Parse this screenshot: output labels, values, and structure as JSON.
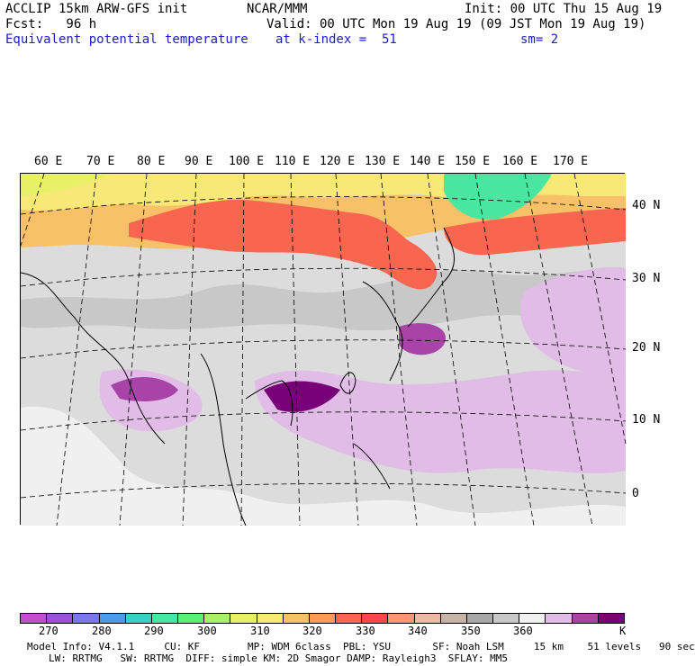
{
  "header": {
    "model": "ACCLIP 15km ARW-GFS init",
    "center": "NCAR/MMM",
    "init": "Init: 00 UTC Thu 15 Aug 19",
    "fcst": "Fcst:   96 h",
    "valid": "Valid: 00 UTC Mon 19 Aug 19 (09 JST Mon 19 Aug 19)",
    "field": "Equivalent potential temperature",
    "level": "at k-index =  51",
    "smooth": "sm= 2"
  },
  "map": {
    "lon_labels": [
      "60 E",
      "70 E",
      "80 E",
      "90 E",
      "100 E",
      "110 E",
      "120 E",
      "130 E",
      "140 E",
      "150 E",
      "160 E",
      "170 E"
    ],
    "lat_labels": [
      "40 N",
      "30 N",
      "20 N",
      "10 N",
      "0"
    ]
  },
  "colorbar": {
    "colors": [
      "#c050c8",
      "#9a52d6",
      "#7a78e6",
      "#4e9ae6",
      "#3ccfc8",
      "#48e6a0",
      "#5cf070",
      "#a8f068",
      "#e8f068",
      "#f8e878",
      "#f8c068",
      "#f89a58",
      "#f86650",
      "#f84848",
      "#f89670",
      "#f0b8a0",
      "#c8b4a6",
      "#a8a8a8",
      "#c8c8c8",
      "#f0f0f0",
      "#e0bce6",
      "#a844a8",
      "#780078"
    ],
    "labels": [
      "270",
      "280",
      "290",
      "300",
      "310",
      "320",
      "330",
      "340",
      "350",
      "360",
      "K"
    ]
  },
  "footer": {
    "line1": "Model Info: V4.1.1     CU: KF        MP: WDM 6class  PBL: YSU       SF: Noah LSM     15 km    51 levels   90 sec",
    "line2": "LW: RRTMG   SW: RRTMG  DIFF: simple KM: 2D Smagor DAMP: Rayleigh3  SFLAY: MM5"
  }
}
